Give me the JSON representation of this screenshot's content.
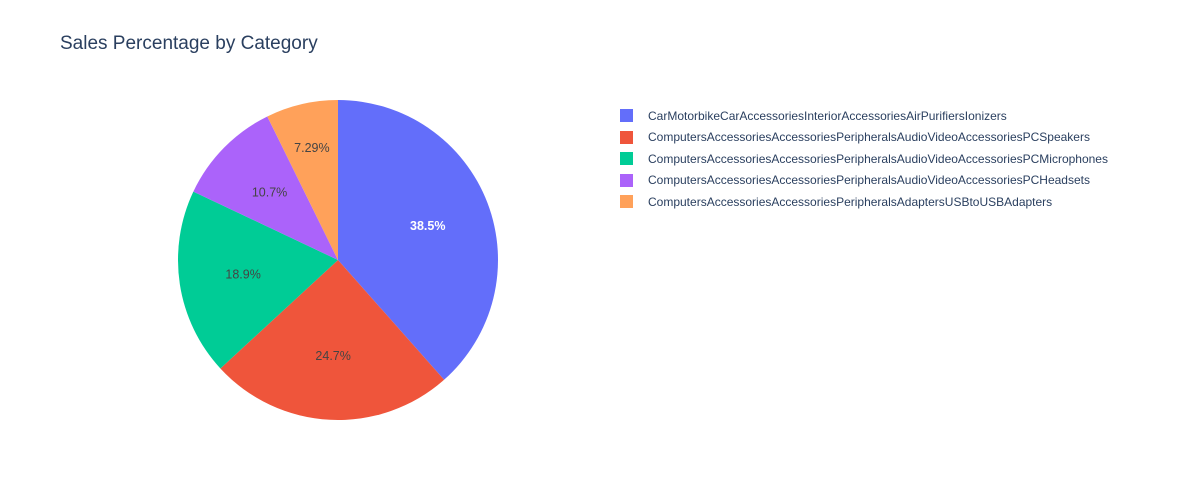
{
  "chart_data": {
    "type": "pie",
    "title": "Sales Percentage by Category",
    "categories": [
      "CarMotorbikeCarAccessoriesInteriorAccessoriesAirPurifiersIonizers",
      "ComputersAccessoriesAccessoriesPeripheralsAudioVideoAccessoriesPCSpeakers",
      "ComputersAccessoriesAccessoriesPeripheralsAudioVideoAccessoriesPCMicrophones",
      "ComputersAccessoriesAccessoriesPeripheralsAudioVideoAccessoriesPCHeadsets",
      "ComputersAccessoriesAccessoriesPeripheralsAdaptersUSBtoUSBAdapters"
    ],
    "values": [
      38.5,
      24.7,
      18.9,
      10.7,
      7.29
    ],
    "labels": [
      "38.5%",
      "24.7%",
      "18.9%",
      "10.7%",
      "7.29%"
    ],
    "colors": [
      "#636efa",
      "#EF553B",
      "#00cc96",
      "#ab63fa",
      "#FFA15A"
    ],
    "label_colors": [
      "#ffffff",
      "#444444",
      "#444444",
      "#444444",
      "#444444"
    ],
    "legend_position": "right",
    "direction": "clockwise",
    "start": "top"
  }
}
